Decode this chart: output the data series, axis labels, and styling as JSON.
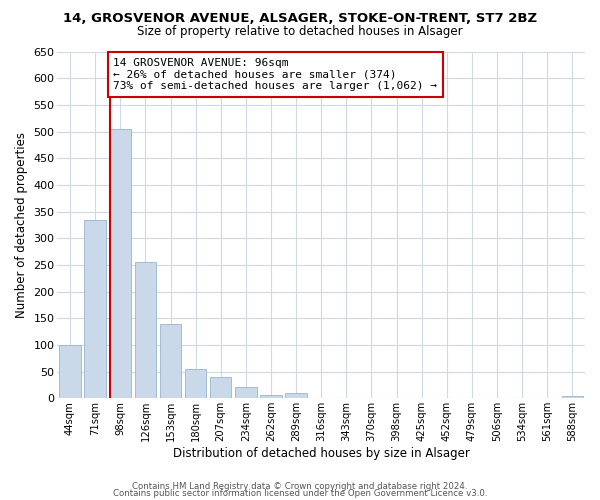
{
  "title": "14, GROSVENOR AVENUE, ALSAGER, STOKE-ON-TRENT, ST7 2BZ",
  "subtitle": "Size of property relative to detached houses in Alsager",
  "xlabel": "Distribution of detached houses by size in Alsager",
  "ylabel": "Number of detached properties",
  "bar_color": "#c9d9ea",
  "bar_edge_color": "#9ab5cc",
  "categories": [
    "44sqm",
    "71sqm",
    "98sqm",
    "126sqm",
    "153sqm",
    "180sqm",
    "207sqm",
    "234sqm",
    "262sqm",
    "289sqm",
    "316sqm",
    "343sqm",
    "370sqm",
    "398sqm",
    "425sqm",
    "452sqm",
    "479sqm",
    "506sqm",
    "534sqm",
    "561sqm",
    "588sqm"
  ],
  "values": [
    100,
    335,
    505,
    255,
    140,
    55,
    40,
    22,
    7,
    10,
    0,
    0,
    0,
    0,
    0,
    0,
    0,
    0,
    0,
    0,
    5
  ],
  "red_line_index": 2,
  "annotation_text": "14 GROSVENOR AVENUE: 96sqm\n← 26% of detached houses are smaller (374)\n73% of semi-detached houses are larger (1,062) →",
  "annotation_box_color": "#ffffff",
  "annotation_border_color": "#cc0000",
  "ylim": [
    0,
    650
  ],
  "yticks": [
    0,
    50,
    100,
    150,
    200,
    250,
    300,
    350,
    400,
    450,
    500,
    550,
    600,
    650
  ],
  "footer1": "Contains HM Land Registry data © Crown copyright and database right 2024.",
  "footer2": "Contains public sector information licensed under the Open Government Licence v3.0.",
  "bg_color": "#ffffff",
  "grid_color": "#d0d8e4"
}
